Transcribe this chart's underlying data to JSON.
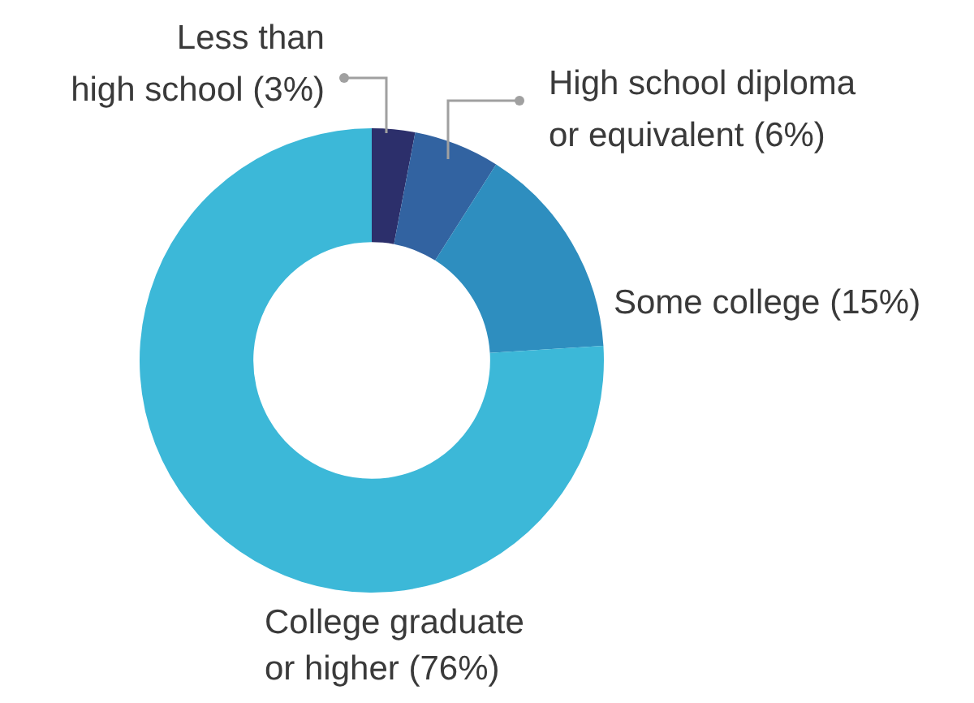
{
  "chart_data": {
    "type": "donut",
    "categories": [
      "Less than high school",
      "High school diploma or equivalent",
      "Some college",
      "College graduate or higher"
    ],
    "values": [
      3,
      6,
      15,
      76
    ],
    "value_labels": [
      "(3%)",
      "(6%)",
      "(15%)",
      "(76%)"
    ],
    "colors": [
      "#2c2f6b",
      "#3263a1",
      "#2e8ebf",
      "#3cb8d8"
    ],
    "legend": false
  }
}
